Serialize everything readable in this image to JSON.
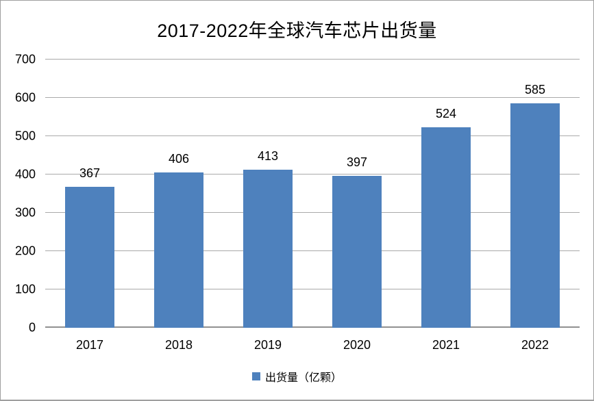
{
  "title": "2017-2022年全球汽车芯片出货量",
  "colors": {
    "bar": "#4E81BD",
    "gridline": "#A9A9A9",
    "axis_line": "#909090",
    "frame_border": "#9F9F9F",
    "text": "#000000",
    "background": "#FFFFFF"
  },
  "legend": {
    "marker": "square",
    "label": "出货量（亿颗）"
  },
  "chart_data": {
    "type": "bar",
    "title": "2017-2022年全球汽车芯片出货量",
    "categories": [
      "2017",
      "2018",
      "2019",
      "2020",
      "2021",
      "2022"
    ],
    "values": [
      367,
      406,
      413,
      397,
      524,
      585
    ],
    "xlabel": "",
    "ylabel": "",
    "ylim": [
      0,
      700
    ],
    "yticks": [
      0,
      100,
      200,
      300,
      400,
      500,
      600,
      700
    ],
    "grid": true,
    "data_labels": true,
    "legend": [
      "出货量（亿颗）"
    ],
    "legend_position": "bottom"
  }
}
